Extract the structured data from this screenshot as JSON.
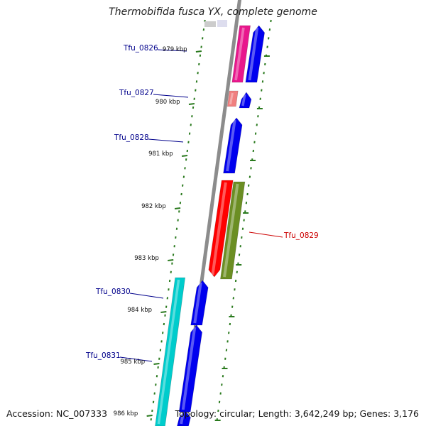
{
  "title": "Thermobifida fusca YX, complete genome",
  "footer": {
    "accession": "Accession: NC_007333",
    "summary": "Topology: circular; Length: 3,642,249 bp; Genes: 3,176"
  },
  "colors": {
    "backbone": "#8c8c8c",
    "tick": "#2a7a1e",
    "label_blue": "#00008b",
    "label_red": "#cc0000"
  },
  "ruler": [
    {
      "label": "979 kbp",
      "value": 979
    },
    {
      "label": "980 kbp",
      "value": 980
    },
    {
      "label": "981 kbp",
      "value": 981
    },
    {
      "label": "982 kbp",
      "value": 982
    },
    {
      "label": "983 kbp",
      "value": 983
    },
    {
      "label": "984 kbp",
      "value": 984
    },
    {
      "label": "985 kbp",
      "value": 985
    },
    {
      "label": "986 kbp",
      "value": 986
    }
  ],
  "genes": [
    {
      "name": "Tfu_0826",
      "label": "Tfu_0826",
      "label_color": "blue"
    },
    {
      "name": "Tfu_0827",
      "label": "Tfu_0827",
      "label_color": "blue"
    },
    {
      "name": "Tfu_0828",
      "label": "Tfu_0828",
      "label_color": "blue"
    },
    {
      "name": "Tfu_0829",
      "label": "Tfu_0829",
      "label_color": "red"
    },
    {
      "name": "Tfu_0830",
      "label": "Tfu_0830",
      "label_color": "blue"
    },
    {
      "name": "Tfu_0831",
      "label": "Tfu_0831",
      "label_color": "blue"
    }
  ]
}
